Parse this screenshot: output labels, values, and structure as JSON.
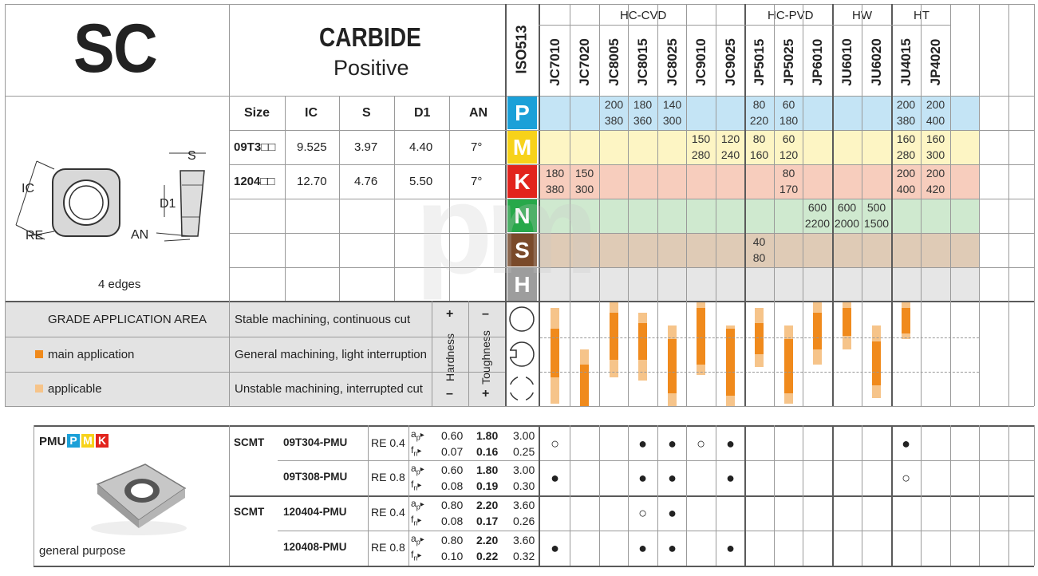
{
  "header": {
    "code": "SC",
    "material": "CARBIDE",
    "subtype": "Positive",
    "iso_label": "ISO513"
  },
  "groups": [
    {
      "label": "HC-CVD"
    },
    {
      "label": "HC-PVD"
    },
    {
      "label": "HW"
    },
    {
      "label": "HT"
    }
  ],
  "grades": [
    "JC7010",
    "JC7020",
    "JC8005",
    "JC8015",
    "JC8025",
    "JC9010",
    "JC9025",
    "JP5015",
    "JP5025",
    "JP6010",
    "JU6010",
    "JU6020",
    "JU4015",
    "JP4020"
  ],
  "dims": {
    "headers": [
      "Size",
      "IC",
      "S",
      "D1",
      "AN"
    ],
    "rows": [
      {
        "size": "09T3□□",
        "ic": "9.525",
        "s": "3.97",
        "d1": "4.40",
        "an": "7°"
      },
      {
        "size": "1204□□",
        "ic": "12.70",
        "s": "4.76",
        "d1": "5.50",
        "an": "7°"
      }
    ]
  },
  "diagram": {
    "ic": "IC",
    "re": "RE",
    "s": "S",
    "d1": "D1",
    "an": "AN",
    "edges": "4 edges"
  },
  "iso_rows": [
    {
      "letter": "P",
      "color": "#1ba0d8",
      "band": "#c4e4f5",
      "values": [
        null,
        null,
        [
          "200",
          "380"
        ],
        [
          "180",
          "360"
        ],
        [
          "140",
          "300"
        ],
        null,
        null,
        [
          "80",
          "220"
        ],
        [
          "60",
          "180"
        ],
        null,
        null,
        null,
        [
          "200",
          "380"
        ],
        [
          "200",
          "400"
        ]
      ]
    },
    {
      "letter": "M",
      "color": "#f7d21a",
      "band": "#fdf5c4",
      "values": [
        null,
        null,
        null,
        null,
        null,
        [
          "150",
          "280"
        ],
        [
          "120",
          "240"
        ],
        [
          "80",
          "160"
        ],
        [
          "60",
          "120"
        ],
        null,
        null,
        null,
        [
          "160",
          "280"
        ],
        [
          "160",
          "300"
        ]
      ]
    },
    {
      "letter": "K",
      "color": "#e2241d",
      "band": "#f7cdbd",
      "values": [
        [
          "180",
          "380"
        ],
        [
          "150",
          "300"
        ],
        null,
        null,
        null,
        null,
        null,
        null,
        [
          "80",
          "170"
        ],
        null,
        null,
        null,
        [
          "200",
          "400"
        ],
        [
          "200",
          "420"
        ]
      ]
    },
    {
      "letter": "N",
      "color": "#27a84a",
      "band": "#cfe9cf",
      "values": [
        null,
        null,
        null,
        null,
        null,
        null,
        null,
        null,
        null,
        [
          "600",
          "2200"
        ],
        [
          "600",
          "2000"
        ],
        [
          "500",
          "1500"
        ],
        null,
        null
      ]
    },
    {
      "letter": "S",
      "color": "#7a4a2a",
      "band": "#dfcbb6",
      "values": [
        null,
        null,
        null,
        null,
        null,
        null,
        null,
        [
          "40",
          "80"
        ],
        null,
        null,
        null,
        null,
        null,
        null
      ]
    },
    {
      "letter": "H",
      "color": "#9d9d9d",
      "band": "#e6e6e6",
      "values": [
        null,
        null,
        null,
        null,
        null,
        null,
        null,
        null,
        null,
        null,
        null,
        null,
        null,
        null
      ]
    }
  ],
  "application": {
    "title": "GRADE APPLICATION AREA",
    "legend_main": "main application",
    "legend_applicable": "applicable",
    "conditions": [
      "Stable machining, continuous cut",
      "General machining, light interruption",
      "Unstable machining, interrupted cut"
    ],
    "hardness": "Hardness",
    "toughness": "Toughness",
    "plus": "+",
    "minus": "–",
    "bars": [
      {
        "main": [
          0.25,
          0.72
        ],
        "appl": [
          0.05,
          0.98
        ]
      },
      {
        "main": [
          0.6,
          1.0
        ],
        "appl": [
          0.45,
          1.0
        ]
      },
      {
        "main": [
          0.1,
          0.55
        ],
        "appl": [
          0.0,
          0.72
        ]
      },
      {
        "main": [
          0.2,
          0.55
        ],
        "appl": [
          0.1,
          0.75
        ]
      },
      {
        "main": [
          0.35,
          0.88
        ],
        "appl": [
          0.22,
          1.0
        ]
      },
      {
        "main": [
          0.05,
          0.6
        ],
        "appl": [
          0.0,
          0.7
        ]
      },
      {
        "main": [
          0.25,
          0.9
        ],
        "appl": [
          0.22,
          1.0
        ]
      },
      {
        "main": [
          0.2,
          0.5
        ],
        "appl": [
          0.05,
          0.62
        ]
      },
      {
        "main": [
          0.35,
          0.88
        ],
        "appl": [
          0.22,
          0.98
        ]
      },
      {
        "main": [
          0.1,
          0.45
        ],
        "appl": [
          0.0,
          0.6
        ]
      },
      {
        "main": [
          0.05,
          0.32
        ],
        "appl": [
          0.0,
          0.45
        ]
      },
      {
        "main": [
          0.38,
          0.8
        ],
        "appl": [
          0.22,
          0.92
        ]
      },
      {
        "main": [
          0.05,
          0.3
        ],
        "appl": [
          0.0,
          0.35
        ]
      },
      {
        "main": [
          0.0,
          0.0
        ],
        "appl": [
          0.0,
          0.0
        ]
      }
    ]
  },
  "product": {
    "name": "PMU",
    "tags": [
      {
        "l": "P",
        "c": "#1ba0d8"
      },
      {
        "l": "M",
        "c": "#f7d21a"
      },
      {
        "l": "K",
        "c": "#e2241d"
      }
    ],
    "caption": "general purpose",
    "groups": [
      {
        "type": "SCMT",
        "rows": [
          {
            "code": "09T304-PMU",
            "re": "RE 0.4",
            "ap": [
              "0.60",
              "1.80",
              "3.00"
            ],
            "fn": [
              "0.07",
              "0.16",
              "0.25"
            ],
            "marks": [
              "o",
              "",
              "",
              "f",
              "f",
              "o",
              "f",
              "",
              "",
              "",
              "",
              "",
              "f",
              ""
            ]
          },
          {
            "code": "09T308-PMU",
            "re": "RE 0.8",
            "ap": [
              "0.60",
              "1.80",
              "3.00"
            ],
            "fn": [
              "0.08",
              "0.19",
              "0.30"
            ],
            "marks": [
              "f",
              "",
              "",
              "f",
              "f",
              "",
              "f",
              "",
              "",
              "",
              "",
              "",
              "o",
              ""
            ]
          }
        ]
      },
      {
        "type": "SCMT",
        "rows": [
          {
            "code": "120404-PMU",
            "re": "RE 0.4",
            "ap": [
              "0.80",
              "2.20",
              "3.60"
            ],
            "fn": [
              "0.08",
              "0.17",
              "0.26"
            ],
            "marks": [
              "",
              "",
              "",
              "o",
              "f",
              "",
              "",
              "",
              "",
              "",
              "",
              "",
              "",
              ""
            ]
          },
          {
            "code": "120408-PMU",
            "re": "RE 0.8",
            "ap": [
              "0.80",
              "2.20",
              "3.60"
            ],
            "fn": [
              "0.10",
              "0.22",
              "0.32"
            ],
            "marks": [
              "f",
              "",
              "",
              "f",
              "f",
              "",
              "f",
              "",
              "",
              "",
              "",
              "",
              "",
              ""
            ]
          }
        ]
      }
    ],
    "ap_label": "ap",
    "fn_label": "fn"
  },
  "colors": {
    "main": "#f08a1c",
    "applicable": "#f6c48a",
    "grey": "#e3e3e3"
  }
}
